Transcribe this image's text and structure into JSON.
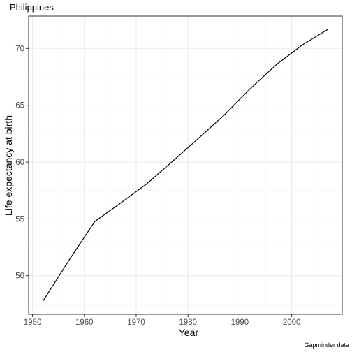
{
  "chart_data": {
    "type": "line",
    "title": "Philippines",
    "xlabel": "Year",
    "ylabel": "Life expectancy at birth",
    "caption": "Gapminder data",
    "xlim": [
      1949.25,
      2009.75
    ],
    "ylim": [
      46.6,
      72.85
    ],
    "x_ticks": [
      1950,
      1960,
      1970,
      1980,
      1990,
      2000
    ],
    "y_ticks": [
      50,
      55,
      60,
      65,
      70
    ],
    "x_minor": [
      1955,
      1965,
      1975,
      1985,
      1995,
      2005
    ],
    "y_minor": [
      47.5,
      52.5,
      57.5,
      62.5,
      67.5,
      72.5
    ],
    "grid": true,
    "series": [
      {
        "x": [
          1952,
          1957,
          1962,
          1967,
          1972,
          1977,
          1982,
          1987,
          1992,
          1997,
          2002,
          2007
        ],
        "values": [
          47.75,
          51.33,
          54.76,
          56.39,
          58.07,
          60.06,
          62.08,
          64.15,
          66.46,
          68.56,
          70.3,
          71.69
        ]
      }
    ],
    "colors": {
      "line": "#000000",
      "grid_major": "#ebebeb",
      "grid_minor": "#f5f5f5",
      "panel_border": "#333333"
    }
  }
}
